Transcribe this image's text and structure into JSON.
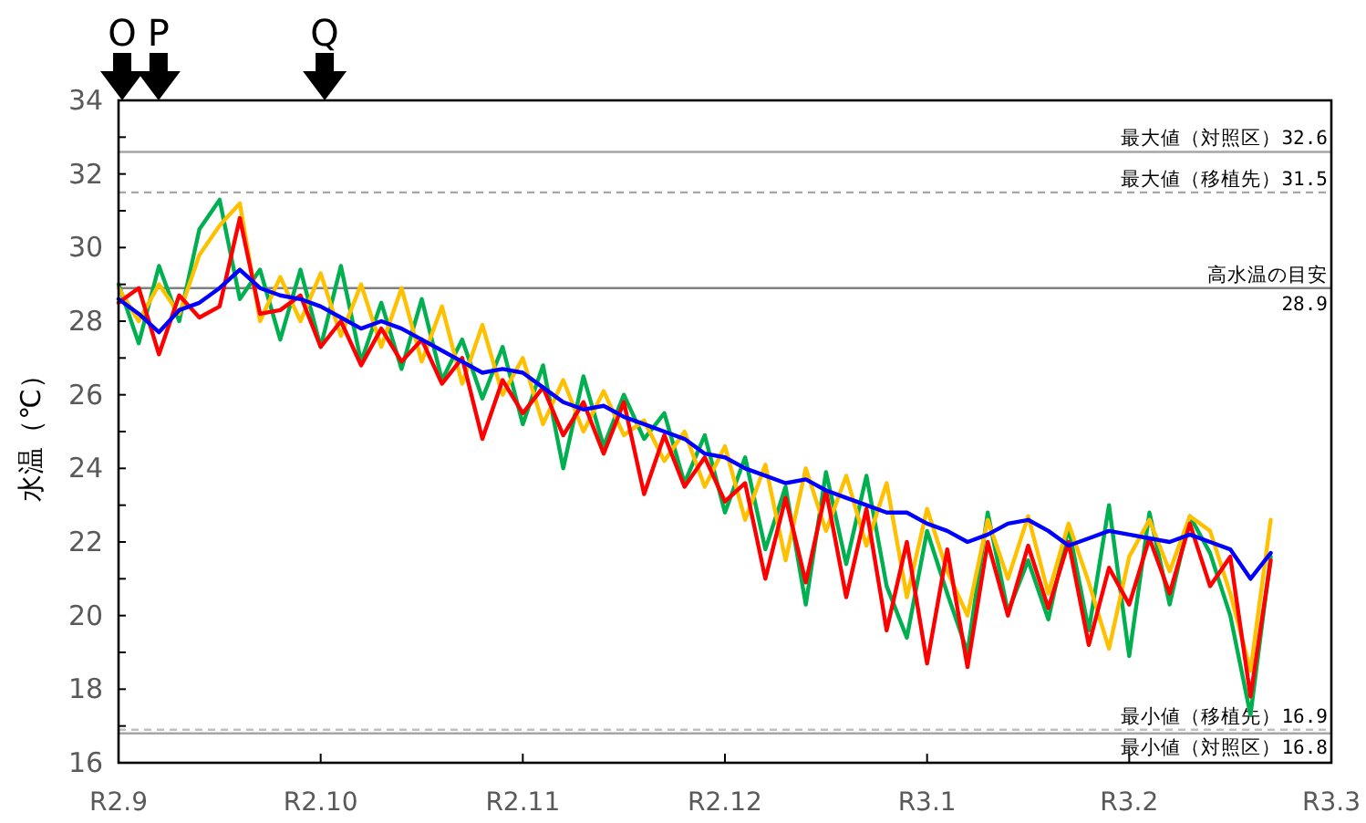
{
  "chart_data": {
    "type": "line",
    "ylabel": "水温（℃）",
    "categories": [
      "R2.9",
      null,
      null,
      null,
      null,
      null,
      null,
      null,
      null,
      null,
      "R2.10",
      null,
      null,
      null,
      null,
      null,
      null,
      null,
      null,
      null,
      "R2.11",
      null,
      null,
      null,
      null,
      null,
      null,
      null,
      null,
      null,
      "R2.12",
      null,
      null,
      null,
      null,
      null,
      null,
      null,
      null,
      null,
      "R3.1",
      null,
      null,
      null,
      null,
      null,
      null,
      null,
      null,
      null,
      "R3.2",
      null,
      null,
      null,
      null,
      null,
      null,
      null,
      null,
      null,
      "R3.3"
    ],
    "ylim": [
      16,
      34
    ],
    "yticks": [
      16,
      {
        "value": 17,
        "label": null
      },
      18,
      {
        "value": 19,
        "label": null
      },
      20,
      {
        "value": 21,
        "label": null
      },
      22,
      {
        "value": 23,
        "label": null
      },
      24,
      {
        "value": 25,
        "label": null
      },
      26,
      {
        "value": 27,
        "label": null
      },
      28,
      {
        "value": 29,
        "label": null
      },
      30,
      {
        "value": 31,
        "label": null
      },
      32,
      {
        "value": 33,
        "label": null
      },
      34
    ],
    "grid": false,
    "marker": "none",
    "line_style": "solid",
    "series": [
      {
        "color": "#00b050",
        "values": [
          29.0,
          27.4,
          29.5,
          28.0,
          30.5,
          31.3,
          28.6,
          29.4,
          27.5,
          29.4,
          27.3,
          29.5,
          26.9,
          28.5,
          26.7,
          28.6,
          26.4,
          27.5,
          25.9,
          27.3,
          25.2,
          26.8,
          24.0,
          26.5,
          24.6,
          26.0,
          24.8,
          25.5,
          23.6,
          24.9,
          22.8,
          24.3,
          21.8,
          23.5,
          20.3,
          23.9,
          21.4,
          23.8,
          20.8,
          19.4,
          22.3,
          20.6,
          19.0,
          22.8,
          20.1,
          21.5,
          19.9,
          22.4,
          19.6,
          23.0,
          18.9,
          22.8,
          20.3,
          22.7,
          21.7,
          20.0,
          17.3,
          21.6,
          null,
          null,
          null
        ]
      },
      {
        "color": "#ffc000",
        "values": [
          28.9,
          28.0,
          29.0,
          28.2,
          29.8,
          30.6,
          31.2,
          28.0,
          29.2,
          28.0,
          29.3,
          27.6,
          29.0,
          27.3,
          28.9,
          26.9,
          28.4,
          26.3,
          27.9,
          26.0,
          27.0,
          25.2,
          26.4,
          25.0,
          26.1,
          24.9,
          25.3,
          24.2,
          25.0,
          23.5,
          24.6,
          22.6,
          24.1,
          21.5,
          24.0,
          22.3,
          23.8,
          21.9,
          23.6,
          20.5,
          22.9,
          21.2,
          20.0,
          22.6,
          21.0,
          22.7,
          20.6,
          22.5,
          20.9,
          19.1,
          21.6,
          22.6,
          21.2,
          22.7,
          22.3,
          20.6,
          18.5,
          22.6,
          null,
          null,
          null
        ]
      },
      {
        "color": "#ff0000",
        "values": [
          28.5,
          28.9,
          27.1,
          28.7,
          28.1,
          28.4,
          30.8,
          28.2,
          28.3,
          28.7,
          27.3,
          28.0,
          26.8,
          27.8,
          26.9,
          27.5,
          26.3,
          27.0,
          24.8,
          26.4,
          25.5,
          26.2,
          24.9,
          25.8,
          24.4,
          25.8,
          23.3,
          24.9,
          23.5,
          24.3,
          23.1,
          23.6,
          21.0,
          23.2,
          20.9,
          23.4,
          20.5,
          22.9,
          19.6,
          22.0,
          18.7,
          21.8,
          18.6,
          22.0,
          20.0,
          21.9,
          20.2,
          22.0,
          19.2,
          21.3,
          20.3,
          22.1,
          20.6,
          22.5,
          20.8,
          21.6,
          17.8,
          21.5,
          null,
          null,
          null
        ]
      },
      {
        "color": "#0000ff",
        "values": [
          28.6,
          28.2,
          27.7,
          28.3,
          28.5,
          28.9,
          29.4,
          28.9,
          28.7,
          28.6,
          28.4,
          28.1,
          27.8,
          28.0,
          27.8,
          27.5,
          27.2,
          26.9,
          26.6,
          26.7,
          26.6,
          26.2,
          25.8,
          25.6,
          25.7,
          25.4,
          25.2,
          25.0,
          24.8,
          24.4,
          24.3,
          24.0,
          23.8,
          23.6,
          23.7,
          23.4,
          23.2,
          23.0,
          22.8,
          22.8,
          22.5,
          22.3,
          22.0,
          22.2,
          22.5,
          22.6,
          22.3,
          21.9,
          22.1,
          22.3,
          22.2,
          22.1,
          22.0,
          22.2,
          22.0,
          21.8,
          21.0,
          21.7,
          null,
          null,
          null
        ]
      }
    ],
    "ref_lines": [
      {
        "axis": "y",
        "value": 32.6,
        "label": "最大値（対照区）32.6",
        "color": "#a6a6a6",
        "line_style": "solid"
      },
      {
        "axis": "y",
        "value": 31.5,
        "label": "最大値（移植先）31.5",
        "color": "#a6a6a6",
        "line_style": "dashed"
      },
      {
        "axis": "y",
        "value": 28.9,
        "label": "高水温の目安\n28.9",
        "color": "#808080",
        "line_style": "solid"
      },
      {
        "axis": "y",
        "value": 16.9,
        "label": "最小値（移植先）16.9",
        "color": "#bfbfbf",
        "line_style": "dashed"
      },
      {
        "axis": "y",
        "value": 16.8,
        "label": "最小値（対照区）16.8",
        "color": "#a6a6a6",
        "line_style": "solid"
      }
    ],
    "annotations": [
      "O",
      "P",
      "Q"
    ]
  }
}
